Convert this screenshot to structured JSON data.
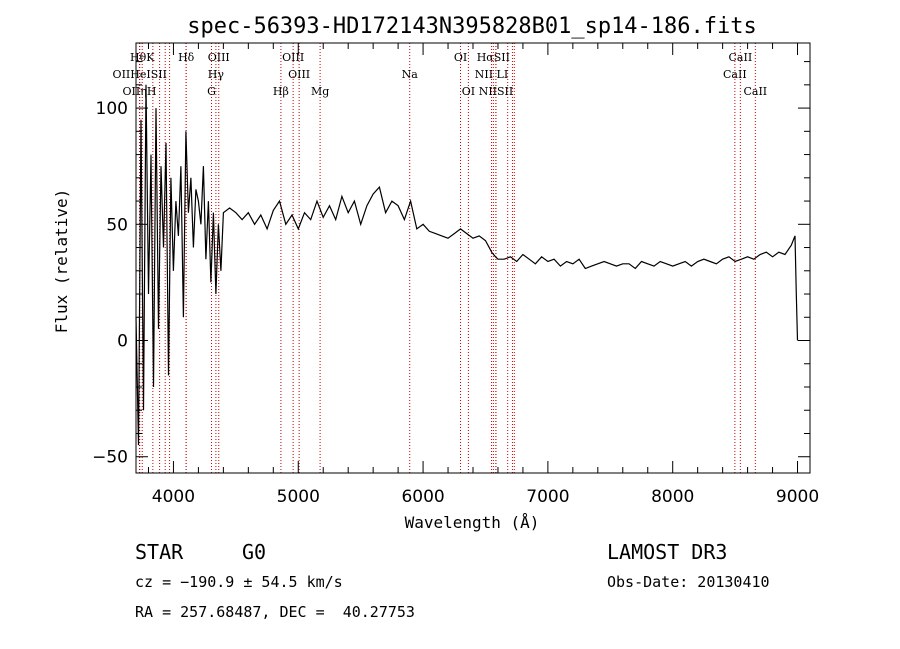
{
  "chart_data": {
    "type": "line",
    "title": "spec-56393-HD172143N395828B01_sp14-186.fits",
    "xlabel": "Wavelength (Å)",
    "ylabel": "Flux (relative)",
    "xlim": [
      3700,
      9100
    ],
    "ylim": [
      -57,
      128
    ],
    "xticks": [
      4000,
      5000,
      6000,
      7000,
      8000,
      9000
    ],
    "yticks": [
      -50,
      0,
      50,
      100
    ],
    "grid": false,
    "line_color": "#000000",
    "marker_color": "#cc0000",
    "series": [
      {
        "x": [
          3700,
          3720,
          3740,
          3760,
          3780,
          3800,
          3820,
          3840,
          3860,
          3880,
          3900,
          3920,
          3940,
          3960,
          3980,
          4000,
          4020,
          4040,
          4060,
          4080,
          4100,
          4120,
          4140,
          4160,
          4180,
          4200,
          4220,
          4240,
          4260,
          4280,
          4300,
          4320,
          4340,
          4360,
          4380,
          4400,
          4450,
          4500,
          4550,
          4600,
          4650,
          4700,
          4750,
          4800,
          4850,
          4900,
          4950,
          5000,
          5050,
          5100,
          5150,
          5200,
          5250,
          5300,
          5350,
          5400,
          5450,
          5500,
          5550,
          5600,
          5650,
          5700,
          5750,
          5800,
          5850,
          5900,
          5950,
          6000,
          6050,
          6100,
          6150,
          6200,
          6250,
          6300,
          6350,
          6400,
          6450,
          6500,
          6550,
          6580,
          6600,
          6650,
          6700,
          6750,
          6800,
          6850,
          6900,
          6950,
          7000,
          7050,
          7100,
          7150,
          7200,
          7250,
          7300,
          7350,
          7400,
          7450,
          7500,
          7550,
          7600,
          7650,
          7700,
          7750,
          7800,
          7850,
          7900,
          7950,
          8000,
          8050,
          8100,
          8150,
          8200,
          8250,
          8300,
          8350,
          8400,
          8450,
          8500,
          8550,
          8600,
          8650,
          8700,
          8750,
          8800,
          8850,
          8900,
          8950,
          8980,
          8990,
          9000
        ],
        "values": [
          10,
          -45,
          95,
          -30,
          110,
          20,
          80,
          -20,
          100,
          5,
          75,
          40,
          85,
          -15,
          70,
          30,
          60,
          45,
          75,
          10,
          90,
          55,
          70,
          40,
          65,
          60,
          50,
          75,
          35,
          60,
          25,
          55,
          20,
          50,
          30,
          55,
          57,
          55,
          52,
          55,
          50,
          54,
          48,
          56,
          60,
          50,
          54,
          48,
          55,
          52,
          60,
          53,
          58,
          52,
          62,
          55,
          60,
          50,
          58,
          63,
          66,
          55,
          60,
          58,
          52,
          60,
          48,
          50,
          47,
          46,
          45,
          44,
          46,
          48,
          46,
          44,
          45,
          43,
          38,
          36,
          35,
          35,
          36,
          34,
          37,
          35,
          33,
          36,
          34,
          35,
          32,
          34,
          33,
          35,
          31,
          32,
          33,
          34,
          33,
          32,
          33,
          33,
          31,
          34,
          33,
          32,
          34,
          33,
          32,
          33,
          34,
          32,
          34,
          35,
          34,
          33,
          35,
          36,
          34,
          35,
          36,
          35,
          37,
          38,
          36,
          38,
          37,
          41,
          45,
          20,
          0
        ]
      }
    ],
    "spectral_lines": [
      {
        "label": "HθK",
        "x": 3750,
        "row": 1
      },
      {
        "label": "OIIHeISII",
        "x": 3730,
        "row": 2
      },
      {
        "label": "OIIηH",
        "x": 3728,
        "row": 3
      },
      {
        "label": "Hδ",
        "x": 4102,
        "row": 1
      },
      {
        "label": "OIII",
        "x": 4363,
        "row": 1
      },
      {
        "label": "Hγ",
        "x": 4340,
        "row": 2
      },
      {
        "label": "G",
        "x": 4305,
        "row": 3
      },
      {
        "label": "OIII",
        "x": 4959,
        "row": 1
      },
      {
        "label": "OIII",
        "x": 5007,
        "row": 2
      },
      {
        "label": "Hβ",
        "x": 4861,
        "row": 3
      },
      {
        "label": "Mg",
        "x": 5175,
        "row": 3
      },
      {
        "label": "Na",
        "x": 5893,
        "row": 2
      },
      {
        "label": "OI",
        "x": 6300,
        "row": 1
      },
      {
        "label": "OI",
        "x": 6363,
        "row": 3
      },
      {
        "label": "HαSII",
        "x": 6563,
        "row": 1
      },
      {
        "label": "NII LI",
        "x": 6548,
        "row": 2
      },
      {
        "label": "NIISII",
        "x": 6584,
        "row": 3
      },
      {
        "label": "CaII",
        "x": 8542,
        "row": 1
      },
      {
        "label": "CaII",
        "x": 8498,
        "row": 2
      },
      {
        "label": "CaII",
        "x": 8662,
        "row": 3
      }
    ],
    "extra_marker_x": [
      3835,
      3889,
      3934,
      3969,
      4101,
      4340,
      4861,
      6563,
      6583,
      6678,
      6716,
      6731
    ]
  },
  "info": {
    "object_class": "STAR",
    "subclass": "G0",
    "survey": "LAMOST DR3",
    "cz": "cz = −190.9 ± 54.5 km/s",
    "obs_date": "Obs-Date: 20130410",
    "coords": "RA = 257.68487, DEC =  40.27753"
  }
}
